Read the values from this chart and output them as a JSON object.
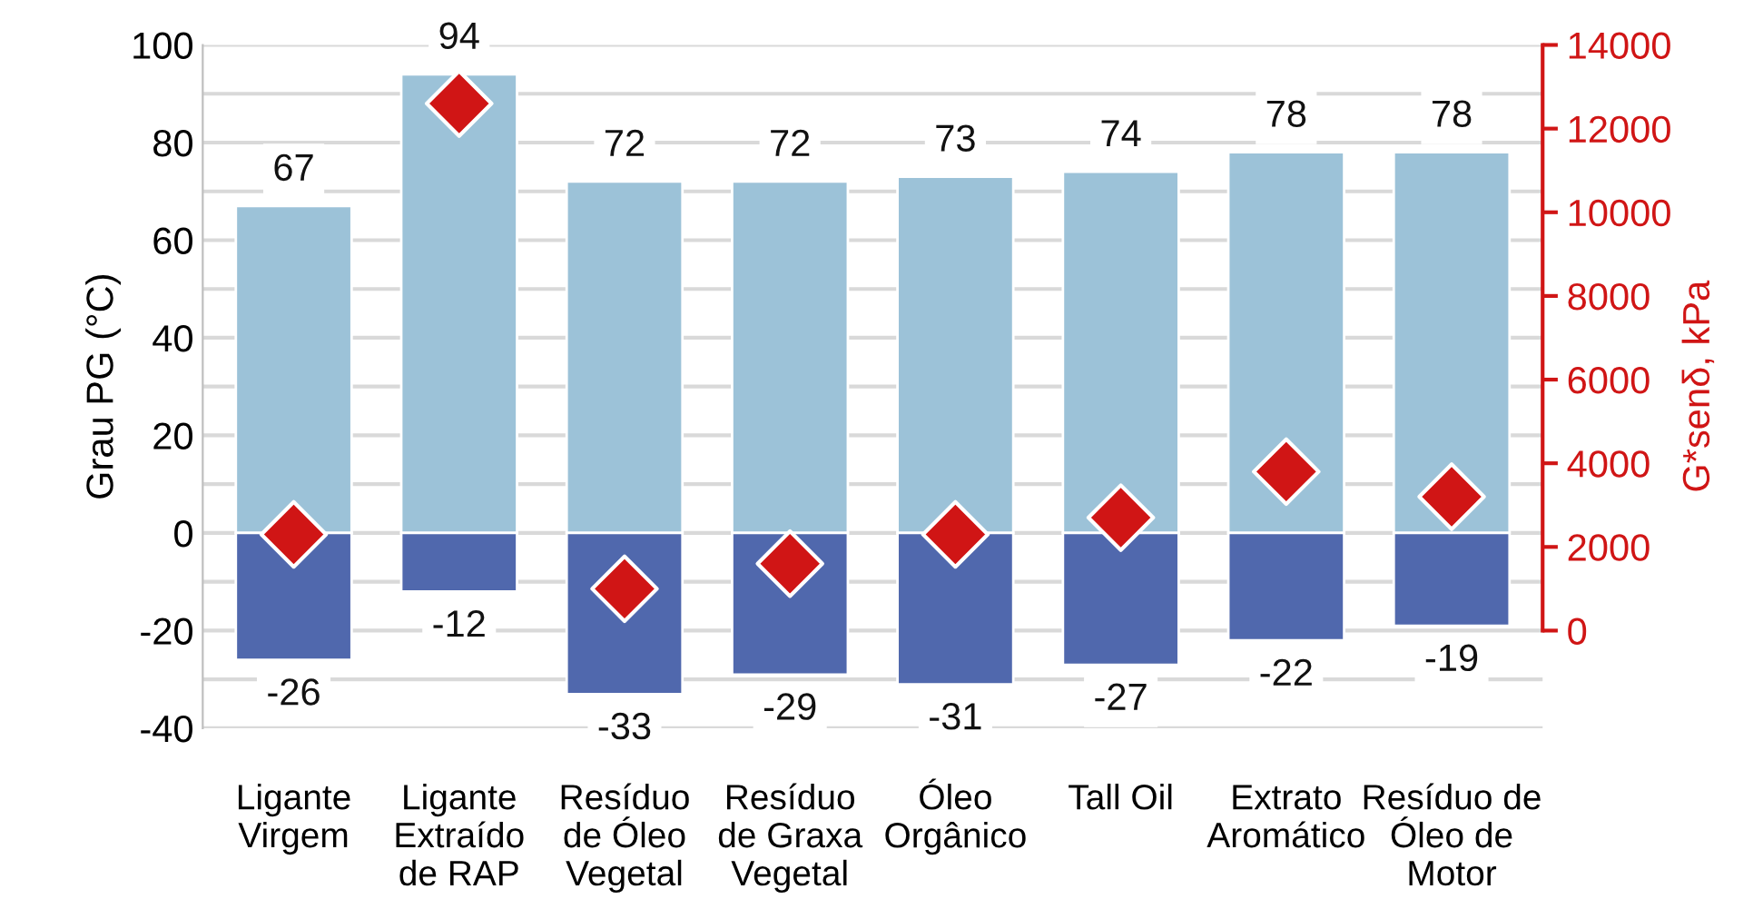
{
  "chart_data": {
    "type": "bar",
    "stacked": true,
    "ylabel": "Grau PG (°C)",
    "y2label": "G*senδ, kPa",
    "categories": [
      "Ligante\nVirgem",
      "Ligante\nExtraído\nde RAP",
      "Resíduo\nde Óleo\nVegetal",
      "Resíduo\nde Graxa\nVegetal",
      "Óleo\nOrgânico",
      "Tall Oil",
      "Extrato\nAromático",
      "Resíduo de\nÓleo de\nMotor"
    ],
    "series": [
      {
        "color": "#9cc2d8",
        "values": [
          67,
          94,
          72,
          72,
          73,
          74,
          78,
          78
        ],
        "value_labels": [
          "67",
          "94",
          "72",
          "72",
          "73",
          "74",
          "78",
          "78"
        ]
      },
      {
        "color": "#5068ad",
        "values": [
          -26,
          -12,
          -33,
          -29,
          -31,
          -27,
          -22,
          -19
        ],
        "value_labels": [
          "-26",
          "-12",
          "-33",
          "-29",
          "-31",
          "-27",
          "-22",
          "-19"
        ]
      },
      {
        "type": "scatter",
        "axis": "y2",
        "color": "#d01515",
        "marker": "diamond",
        "values": [
          2300,
          12600,
          1000,
          1600,
          2300,
          2700,
          3800,
          3200
        ]
      }
    ],
    "grid": "y",
    "ylim": [
      -40,
      100
    ],
    "yticks": [
      -40,
      {
        "value": -30,
        "label": null
      },
      -20,
      {
        "value": -10,
        "label": null
      },
      0,
      {
        "value": 10,
        "label": null
      },
      20,
      {
        "value": 30,
        "label": null
      },
      40,
      {
        "value": 50,
        "label": null
      },
      60,
      {
        "value": 70,
        "label": null
      },
      80,
      {
        "value": 90,
        "label": null
      },
      100
    ],
    "y2lim": [
      -2333,
      14000
    ],
    "y2ticks": [
      0,
      2000,
      4000,
      6000,
      8000,
      10000,
      12000,
      14000
    ]
  }
}
